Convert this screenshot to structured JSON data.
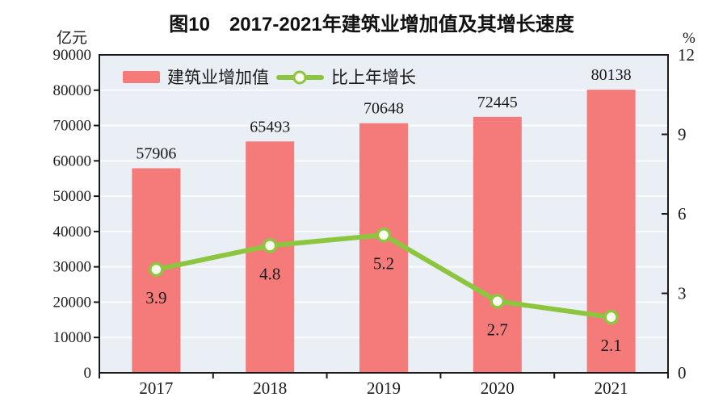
{
  "title": "图10　2017-2021年建筑业增加值及其增长速度",
  "left_axis_unit": "亿元",
  "right_axis_unit": "%",
  "legend": {
    "bar_label": "建筑业增加值",
    "line_label": "比上年增长"
  },
  "colors": {
    "bar": "#F57B7B",
    "line": "#8CC63F",
    "marker_fill": "#FCFDF0",
    "plot_bg": "#E9EFF4",
    "grid": "#FAFCFD",
    "axis": "#1A1A1A",
    "text": "#1A1A1A"
  },
  "chart_data": {
    "type": "bar",
    "title": "图10　2017-2021年建筑业增加值及其增长速度",
    "categories": [
      "2017",
      "2018",
      "2019",
      "2020",
      "2021"
    ],
    "series": [
      {
        "name": "建筑业增加值",
        "type": "bar",
        "axis": "left",
        "unit": "亿元",
        "values": [
          57906,
          65493,
          70648,
          72445,
          80138
        ]
      },
      {
        "name": "比上年增长",
        "type": "line",
        "axis": "right",
        "unit": "%",
        "values": [
          3.9,
          4.8,
          5.2,
          2.7,
          2.1
        ],
        "point_labels": [
          "3.9",
          "4.8",
          "5.2",
          "2.7",
          "2.1"
        ]
      }
    ],
    "left_axis": {
      "label": "亿元",
      "min": 0,
      "max": 90000,
      "ticks": [
        0,
        10000,
        20000,
        30000,
        40000,
        50000,
        60000,
        70000,
        80000,
        90000
      ]
    },
    "right_axis": {
      "label": "%",
      "min": 0,
      "max": 12,
      "ticks": [
        0,
        3,
        6,
        9,
        12
      ]
    },
    "grid": "horizontal",
    "legend_position": "top-inside"
  }
}
